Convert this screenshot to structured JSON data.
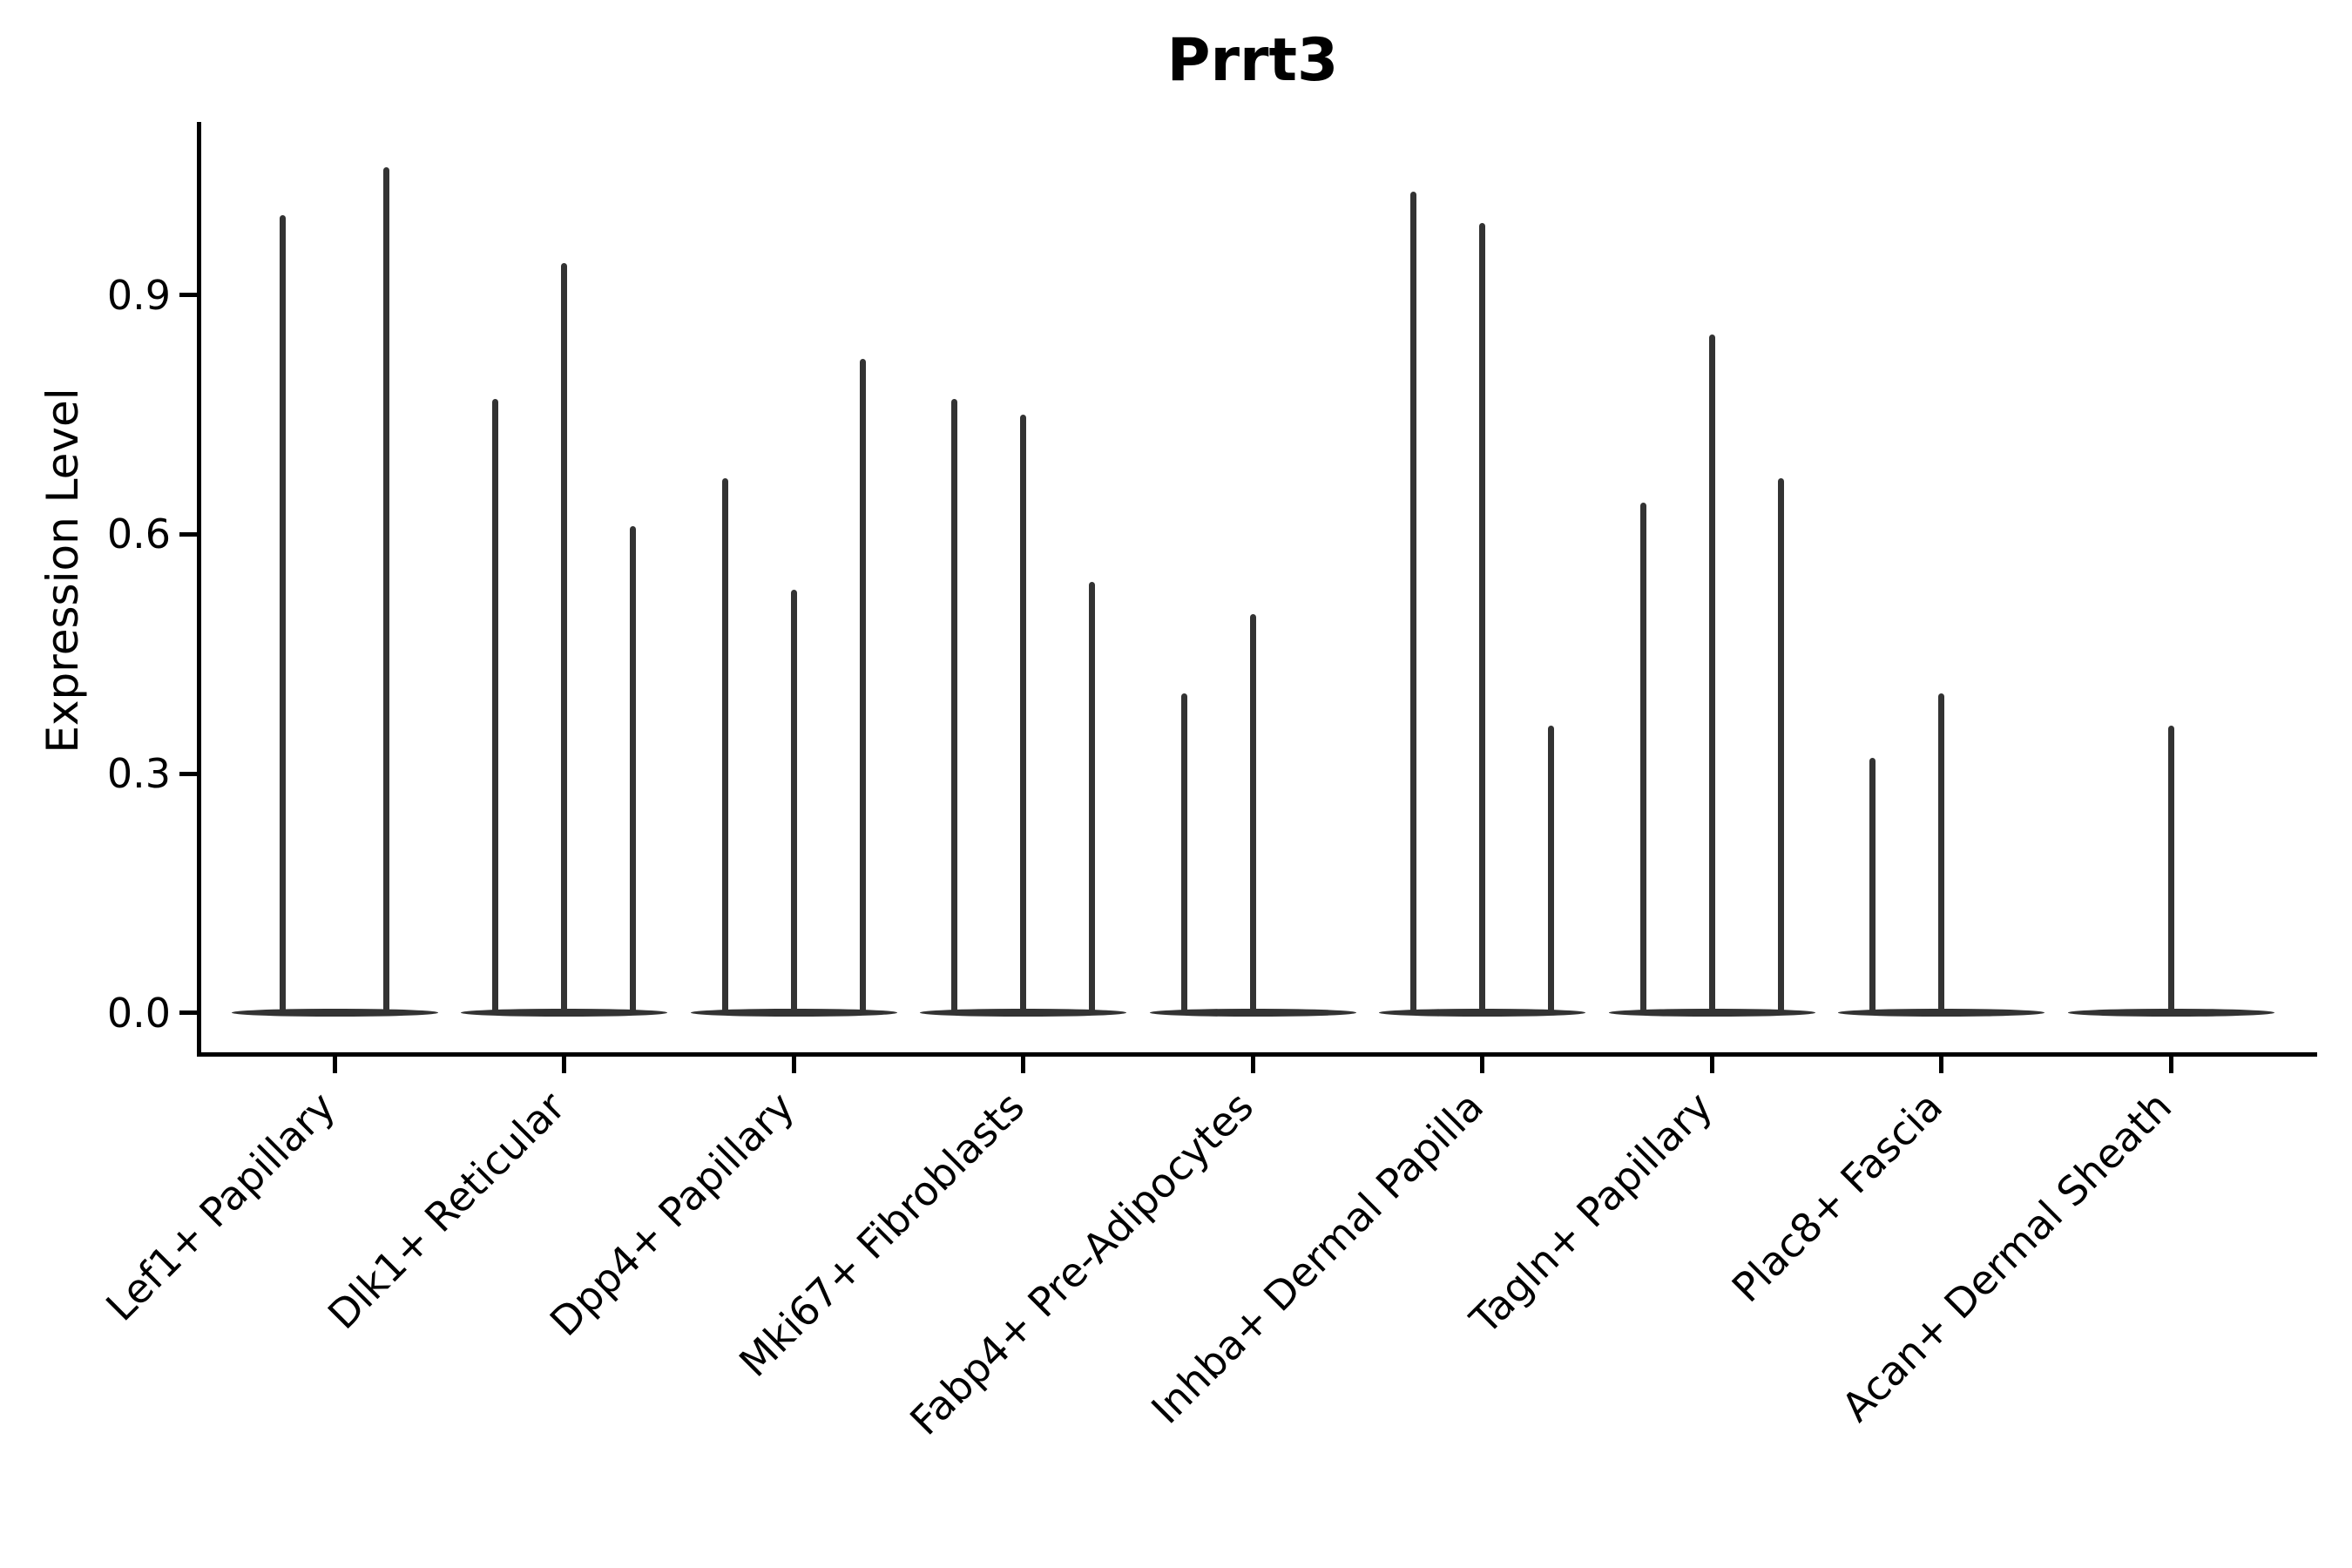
{
  "title": "Prrt3",
  "chart_data": {
    "type": "violin",
    "title": "Prrt3",
    "xlabel": "",
    "ylabel": "Expression Level",
    "yticks": [
      0.0,
      0.3,
      0.6,
      0.9
    ],
    "ylim": [
      -0.02,
      1.12
    ],
    "grid": false,
    "legend": "none",
    "note": "Collapsed single-gene violin plot: each cell-type group shows 2-3 thin violins (split levels); flat violins at 0 with narrow spikes up to the max expression value; null = violin fully flat at 0",
    "categories": [
      "Lef1+ Papillary",
      "Dlk1+ Reticular",
      "Dpp4+ Papillary",
      "Mki67+ Fibroblasts",
      "Fabp4+ Pre-Adipocytes",
      "Inhba+ Dermal Papilla",
      "Tagln+ Papillary",
      "Plac8+ Fascia",
      "Acan+ Dermal Sheath"
    ],
    "groups": [
      {
        "label": "Lef1+ Papillary",
        "slots": 2,
        "violin_maxima": [
          1.0,
          1.06
        ]
      },
      {
        "label": "Dlk1+ Reticular",
        "slots": 3,
        "violin_maxima": [
          0.77,
          0.94,
          0.61
        ]
      },
      {
        "label": "Dpp4+ Papillary",
        "slots": 3,
        "violin_maxima": [
          0.67,
          0.53,
          0.82
        ]
      },
      {
        "label": "Mki67+ Fibroblasts",
        "slots": 3,
        "violin_maxima": [
          0.77,
          0.75,
          0.54
        ]
      },
      {
        "label": "Fabp4+ Pre-Adipocytes",
        "slots": 3,
        "violin_maxima": [
          0.4,
          0.5,
          null
        ]
      },
      {
        "label": "Inhba+ Dermal Papilla",
        "slots": 3,
        "violin_maxima": [
          1.03,
          0.99,
          0.36
        ]
      },
      {
        "label": "Tagln+ Papillary",
        "slots": 3,
        "violin_maxima": [
          0.64,
          0.85,
          0.67
        ]
      },
      {
        "label": "Plac8+ Fascia",
        "slots": 3,
        "violin_maxima": [
          0.32,
          0.4,
          null
        ]
      },
      {
        "label": "Acan+ Dermal Sheath",
        "slots": 3,
        "violin_maxima": [
          null,
          0.36,
          null
        ]
      }
    ],
    "colors": {
      "violin": "#333333",
      "axis": "#000000",
      "text": "#000000"
    }
  }
}
